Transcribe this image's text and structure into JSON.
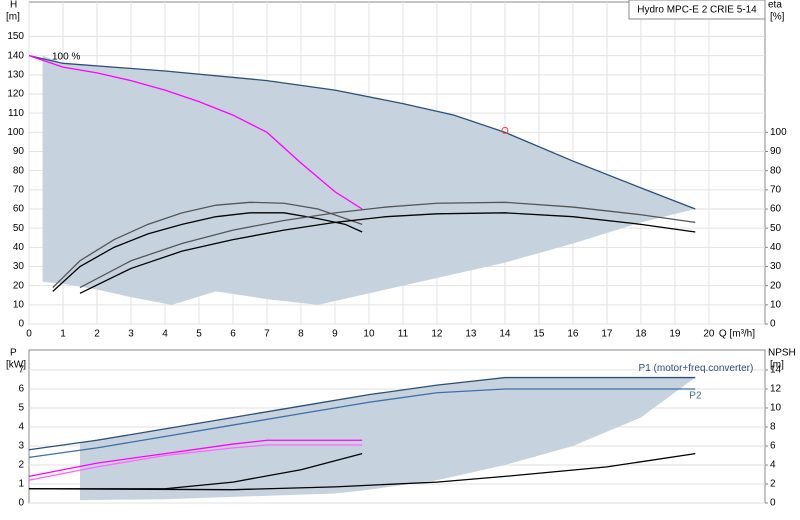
{
  "chart_data": [
    {
      "type": "line",
      "title": "Hydro MPC-E 2 CRIE 5-14",
      "ylabel": "H",
      "yunit": "[m]",
      "y2label": "eta",
      "y2unit": "[%]",
      "xlabel": "Q [m³/h]",
      "annotations": [
        "100 %"
      ],
      "xlim": [
        0,
        21.65
      ],
      "xticks": [
        0,
        1,
        2,
        3,
        4,
        5,
        6,
        7,
        8,
        9,
        10,
        11,
        12,
        13,
        14,
        15,
        16,
        17,
        18,
        19,
        20
      ],
      "ylim": [
        0,
        168
      ],
      "yticks": [
        0,
        10,
        20,
        30,
        40,
        50,
        60,
        70,
        80,
        90,
        100,
        110,
        120,
        130,
        140,
        150
      ],
      "y2lim": [
        0,
        168
      ],
      "y2ticks": [
        0,
        10,
        20,
        30,
        40,
        50,
        60,
        70,
        80,
        90,
        100
      ],
      "grid": true,
      "series": [
        {
          "kind": "area",
          "color": "#c6d3df",
          "x": [
            0.4,
            1,
            4,
            7,
            9,
            11,
            12.5,
            14,
            16,
            18,
            19.6,
            18,
            16,
            14,
            12,
            10,
            8.5,
            7,
            5.5,
            4.2,
            3,
            2,
            1,
            0.4
          ],
          "values": [
            140,
            136,
            132,
            127,
            122,
            115,
            109,
            100,
            85,
            71,
            60,
            53,
            42,
            32,
            24,
            16,
            10,
            13,
            17,
            10,
            14,
            18,
            21,
            22
          ]
        },
        {
          "kind": "line",
          "color": "#2b4f7a",
          "x": [
            0,
            1,
            4,
            7,
            9,
            11,
            12.5,
            14,
            16,
            18,
            19.6
          ],
          "values": [
            140,
            136,
            132,
            127,
            122,
            115,
            109,
            100,
            85,
            71,
            60
          ]
        },
        {
          "kind": "line",
          "color": "#ff00ff",
          "x": [
            0,
            1,
            2,
            3,
            4,
            5,
            6,
            7,
            8,
            9,
            9.8
          ],
          "values": [
            140,
            134,
            131,
            127,
            122,
            116,
            109,
            100,
            84,
            69,
            60
          ]
        },
        {
          "kind": "line",
          "color": "#000000",
          "axis": "y2",
          "x": [
            0.7,
            1.5,
            2.5,
            3.5,
            4.5,
            5.5,
            6.5,
            7.5,
            8.5,
            9.3,
            9.8
          ],
          "values": [
            17,
            30,
            40,
            47,
            52,
            56,
            58,
            58,
            55,
            52,
            48
          ]
        },
        {
          "kind": "line",
          "color": "#555555",
          "axis": "y2",
          "x": [
            0.7,
            1.5,
            2.5,
            3.5,
            4.5,
            5.5,
            6.5,
            7.5,
            8.5,
            9.8
          ],
          "values": [
            19,
            33,
            44,
            52,
            58,
            62,
            63.5,
            63,
            60,
            52
          ]
        },
        {
          "kind": "line",
          "color": "#000000",
          "axis": "y2",
          "x": [
            1.5,
            3,
            4.5,
            6,
            7.5,
            9,
            10.5,
            12,
            14,
            16,
            18,
            19.6
          ],
          "values": [
            16,
            29,
            38,
            44,
            49,
            53,
            56,
            57.5,
            58,
            56,
            52,
            48
          ]
        },
        {
          "kind": "line",
          "color": "#555555",
          "axis": "y2",
          "x": [
            1.5,
            3,
            4.5,
            6,
            7.5,
            9,
            10.5,
            12,
            14,
            16,
            18,
            19.6
          ],
          "values": [
            19,
            33,
            42,
            49,
            54,
            58,
            61,
            63,
            63.5,
            61,
            57,
            53
          ]
        },
        {
          "kind": "marker",
          "color": "#ff3333",
          "x": [
            14
          ],
          "values": [
            101
          ]
        }
      ]
    },
    {
      "type": "line",
      "ylabel": "P",
      "yunit": "[kW]",
      "y2label": "NPSH",
      "y2unit": "[m]",
      "xlim": [
        0,
        21.65
      ],
      "ylim": [
        0,
        8.05
      ],
      "yticks": [
        0,
        1,
        2,
        3,
        4,
        5,
        6,
        7
      ],
      "y2lim": [
        0,
        16.1
      ],
      "y2ticks": [
        0,
        2,
        4,
        6,
        8,
        10,
        12,
        14
      ],
      "grid": true,
      "series": [
        {
          "kind": "area",
          "color": "#c6d3df",
          "x": [
            1.5,
            4,
            6,
            8,
            10,
            12,
            14,
            19.6,
            18,
            16,
            14,
            12,
            10,
            9,
            4,
            1.5
          ],
          "values": [
            3.2,
            3.9,
            4.5,
            5.1,
            5.7,
            6.2,
            6.6,
            6.6,
            4.5,
            3.0,
            2.0,
            1.2,
            0.7,
            0.5,
            0.2,
            0.15
          ]
        },
        {
          "kind": "line",
          "name": "P1 (motor+freq.converter)",
          "color": "#2b4f7a",
          "x": [
            0,
            2,
            4,
            6,
            8,
            10,
            12,
            13,
            14,
            19.6
          ],
          "values": [
            2.8,
            3.3,
            3.9,
            4.5,
            5.1,
            5.7,
            6.2,
            6.4,
            6.6,
            6.6
          ]
        },
        {
          "kind": "line",
          "name": "P2",
          "color": "#3f6fa8",
          "x": [
            0,
            2,
            4,
            6,
            8,
            10,
            12,
            14,
            19.6
          ],
          "values": [
            2.4,
            2.9,
            3.5,
            4.1,
            4.7,
            5.3,
            5.8,
            6.0,
            6.0
          ]
        },
        {
          "kind": "line",
          "color": "#ff00ff",
          "x": [
            0,
            2,
            4,
            6,
            7,
            9.8
          ],
          "values": [
            1.4,
            2.1,
            2.6,
            3.1,
            3.3,
            3.3
          ]
        },
        {
          "kind": "line",
          "color": "#ff66ff",
          "x": [
            0,
            2,
            4,
            6,
            7,
            9.8
          ],
          "values": [
            1.2,
            1.9,
            2.5,
            2.9,
            3.05,
            3.05
          ]
        },
        {
          "kind": "line",
          "color": "#000000",
          "axis": "y2",
          "x": [
            0,
            4,
            6,
            8,
            9.8
          ],
          "values": [
            1.5,
            1.5,
            2.2,
            3.5,
            5.2
          ]
        },
        {
          "kind": "line",
          "color": "#000000",
          "axis": "y2",
          "x": [
            0,
            6,
            9,
            12,
            14,
            17,
            19.6
          ],
          "values": [
            1.5,
            1.4,
            1.7,
            2.2,
            2.8,
            3.8,
            5.2
          ]
        }
      ]
    }
  ]
}
